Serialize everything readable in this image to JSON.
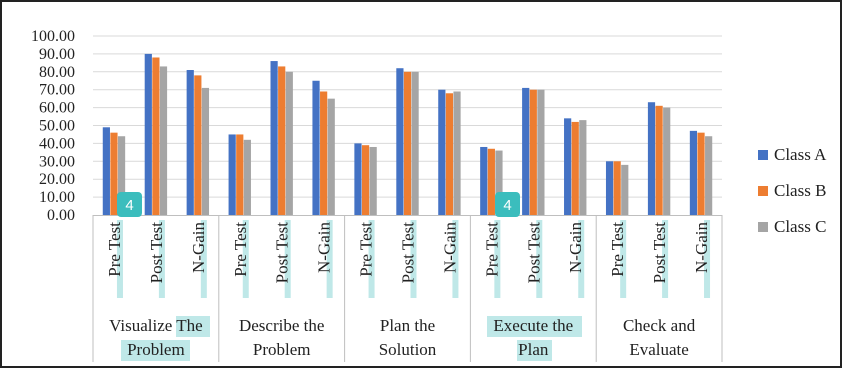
{
  "chart_data": {
    "type": "bar",
    "groups": [
      "Visualize The Problem",
      "Describe the Problem",
      "Plan the Solution",
      "Execute the Plan",
      "Check and Evaluate"
    ],
    "group_lines": [
      [
        "Visualize The",
        "Problem"
      ],
      [
        "Describe the",
        "Problem"
      ],
      [
        "Plan the",
        "Solution"
      ],
      [
        "Execute the",
        "Plan"
      ],
      [
        "Check and",
        "Evaluate"
      ]
    ],
    "subcategories": [
      "Pre Test",
      "Post Test",
      "N-Gain"
    ],
    "series": [
      {
        "name": "Class A",
        "color": "#4472C4",
        "values": [
          49,
          90,
          81,
          45,
          86,
          75,
          40,
          82,
          70,
          38,
          71,
          54,
          30,
          63,
          47
        ]
      },
      {
        "name": "Class B",
        "color": "#ED7D31",
        "values": [
          46,
          88,
          78,
          45,
          83,
          69,
          39,
          80,
          68,
          37,
          70,
          52,
          30,
          61,
          46
        ]
      },
      {
        "name": "Class C",
        "color": "#A5A5A5",
        "values": [
          44,
          83,
          71,
          42,
          80,
          65,
          38,
          80,
          69,
          36,
          70,
          53,
          28,
          60,
          44
        ]
      }
    ],
    "ylim": [
      0,
      100
    ],
    "yticks": [
      "0.00",
      "10.00",
      "20.00",
      "30.00",
      "40.00",
      "50.00",
      "60.00",
      "70.00",
      "80.00",
      "90.00",
      "100.00"
    ],
    "grid": true,
    "legend": "right",
    "badges": [
      "4",
      "4"
    ],
    "highlight_color": "#BFE8E8",
    "badge_color": "#3BBDBD"
  }
}
